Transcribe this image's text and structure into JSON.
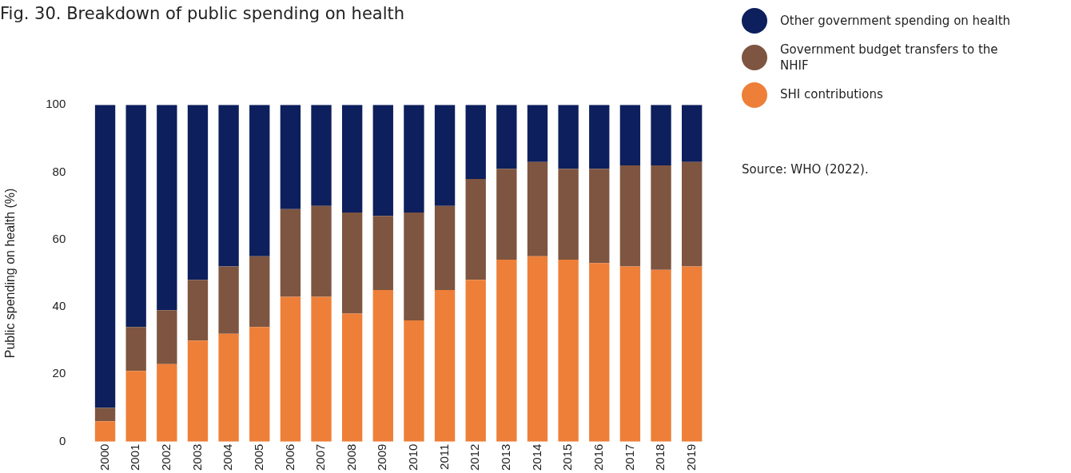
{
  "chart_data": {
    "type": "bar",
    "stacked": true,
    "title": "Fig. 30. Breakdown of public spending on health",
    "ylabel": "Public spending on health (%)",
    "categories": [
      "2000",
      "2001",
      "2002",
      "2003",
      "2004",
      "2005",
      "2006",
      "2007",
      "2008",
      "2009",
      "2010",
      "2011",
      "2012",
      "2013",
      "2014",
      "2015",
      "2016",
      "2017",
      "2018",
      "2019"
    ],
    "series": [
      {
        "name": "SHI contributions",
        "color": "#ee7f38",
        "values": [
          6,
          21,
          23,
          30,
          32,
          34,
          43,
          43,
          38,
          45,
          36,
          45,
          48,
          54,
          55,
          54,
          53,
          52,
          51,
          52
        ]
      },
      {
        "name": "Government budget transfers to the NHIF",
        "color": "#7e5540",
        "values": [
          4,
          13,
          16,
          18,
          20,
          21,
          26,
          27,
          30,
          22,
          32,
          25,
          30,
          27,
          28,
          27,
          28,
          30,
          31,
          31
        ]
      },
      {
        "name": "Other government spending on health",
        "color": "#0d1f5c",
        "values": [
          90,
          66,
          61,
          52,
          48,
          45,
          31,
          30,
          32,
          33,
          32,
          30,
          22,
          19,
          17,
          19,
          19,
          18,
          18,
          17
        ]
      }
    ],
    "ylim": [
      0,
      100
    ],
    "yticks": [
      0,
      20,
      40,
      60,
      80,
      100
    ],
    "grid": false,
    "legend": "top right",
    "annotations": [
      "Source: WHO (2022)."
    ]
  }
}
